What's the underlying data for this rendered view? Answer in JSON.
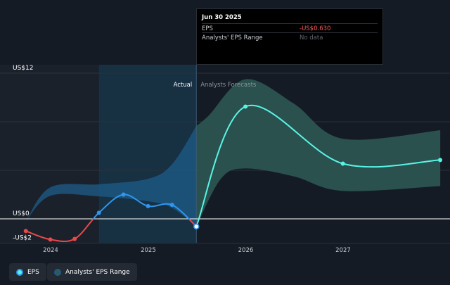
{
  "tooltip": {
    "date": "Jun 30 2025",
    "rows": [
      {
        "label": "EPS",
        "value": "-US$0.630"
      },
      {
        "label": "Analysts' EPS Range",
        "value": "No data"
      }
    ]
  },
  "legend": {
    "eps_label": "EPS",
    "range_label": "Analysts' EPS Range"
  },
  "colors": {
    "background": "#151b24",
    "eps_positive": "#2f95ee",
    "eps_negative": "#e8494b",
    "forecast": "#58f5e6",
    "range_past": "#1f5c8a",
    "range_forecast": "#2e5b56",
    "highlight": "#173247"
  },
  "chart_data": {
    "type": "line",
    "divider_labels": {
      "left": "Actual",
      "right": "Analysts Forecasts"
    },
    "divider_x": "2025-06-30",
    "highlight_range": [
      "2024-06-30",
      "2025-06-30"
    ],
    "xlim": [
      "2023-09-01",
      "2027-12-31"
    ],
    "ylim": [
      -2,
      12
    ],
    "y_ticks": [
      {
        "value": 12,
        "label": "US$12"
      },
      {
        "value": 0,
        "label": "US$0"
      },
      {
        "value": -2,
        "label": "-US$2"
      }
    ],
    "x_ticks": [
      {
        "value": "2024-01-01",
        "label": "2024"
      },
      {
        "value": "2025-01-01",
        "label": "2025"
      },
      {
        "value": "2026-01-01",
        "label": "2026"
      },
      {
        "value": "2027-01-01",
        "label": "2027"
      }
    ],
    "series": [
      {
        "name": "EPS",
        "points": [
          {
            "x": "2023-09-30",
            "y": -1.0
          },
          {
            "x": "2023-12-31",
            "y": -1.7
          },
          {
            "x": "2024-03-31",
            "y": -1.65
          },
          {
            "x": "2024-06-30",
            "y": 0.5
          },
          {
            "x": "2024-09-30",
            "y": 2.0
          },
          {
            "x": "2024-12-31",
            "y": 1.05
          },
          {
            "x": "2025-03-31",
            "y": 1.15
          },
          {
            "x": "2025-06-30",
            "y": -0.63
          }
        ]
      },
      {
        "name": "EPS Forecast",
        "points": [
          {
            "x": "2025-06-30",
            "y": -0.63
          },
          {
            "x": "2025-12-31",
            "y": 9.25
          },
          {
            "x": "2026-12-31",
            "y": 4.55
          },
          {
            "x": "2027-12-31",
            "y": 4.85
          }
        ]
      }
    ],
    "range_band": {
      "name": "Analysts' EPS Range",
      "upper": [
        {
          "x": "2023-09-30",
          "y": -0.2
        },
        {
          "x": "2023-12-31",
          "y": 2.6
        },
        {
          "x": "2024-06-30",
          "y": 2.85
        },
        {
          "x": "2024-12-31",
          "y": 3.3
        },
        {
          "x": "2025-03-31",
          "y": 4.5
        },
        {
          "x": "2025-06-30",
          "y": 7.65
        },
        {
          "x": "2025-08-15",
          "y": 8.5
        },
        {
          "x": "2025-12-31",
          "y": 11.5
        },
        {
          "x": "2026-06-30",
          "y": 9.5
        },
        {
          "x": "2026-12-31",
          "y": 6.6
        },
        {
          "x": "2027-12-31",
          "y": 7.3
        }
      ],
      "lower": [
        {
          "x": "2023-09-30",
          "y": -0.2
        },
        {
          "x": "2023-12-31",
          "y": 1.9
        },
        {
          "x": "2024-06-30",
          "y": 1.85
        },
        {
          "x": "2024-12-31",
          "y": 1.45
        },
        {
          "x": "2025-03-31",
          "y": 0.9
        },
        {
          "x": "2025-06-30",
          "y": -0.63
        },
        {
          "x": "2025-09-30",
          "y": 3.3
        },
        {
          "x": "2025-12-31",
          "y": 4.15
        },
        {
          "x": "2026-06-30",
          "y": 3.5
        },
        {
          "x": "2026-12-31",
          "y": 2.3
        },
        {
          "x": "2027-12-31",
          "y": 2.7
        }
      ]
    }
  }
}
